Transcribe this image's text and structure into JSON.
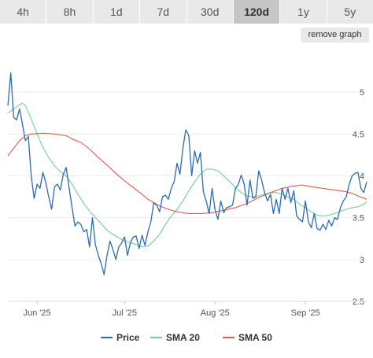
{
  "range_tabs": {
    "items": [
      {
        "label": "4h"
      },
      {
        "label": "8h"
      },
      {
        "label": "1d"
      },
      {
        "label": "7d"
      },
      {
        "label": "30d"
      },
      {
        "label": "120d"
      },
      {
        "label": "1y"
      },
      {
        "label": "5y"
      }
    ],
    "selected": "120d"
  },
  "remove_graph_label": "remove graph",
  "chart_data": {
    "type": "line",
    "title": "",
    "xlabel": "",
    "ylabel": "",
    "ylim": [
      2.5,
      5.5
    ],
    "y_ticks": [
      2.5,
      3,
      3.5,
      4,
      4.5,
      5
    ],
    "x_ticks": [
      {
        "label": "Jun '25",
        "day": 10
      },
      {
        "label": "Jul '25",
        "day": 40
      },
      {
        "label": "Aug '25",
        "day": 71
      },
      {
        "label": "Sep '25",
        "day": 102
      }
    ],
    "x_range_days": [
      0,
      123
    ],
    "grid": true,
    "legend": "bottom",
    "series": [
      {
        "name": "Price",
        "color": "#2b6cb0",
        "points": [
          [
            0,
            4.84
          ],
          [
            1,
            5.23
          ],
          [
            2,
            4.7
          ],
          [
            3,
            4.67
          ],
          [
            4,
            4.8
          ],
          [
            5,
            4.62
          ],
          [
            6,
            4.42
          ],
          [
            7,
            4.47
          ],
          [
            8,
            4.0
          ],
          [
            9,
            3.73
          ],
          [
            10,
            3.9
          ],
          [
            11,
            3.85
          ],
          [
            12,
            4.04
          ],
          [
            13,
            3.92
          ],
          [
            14,
            3.75
          ],
          [
            15,
            3.6
          ],
          [
            16,
            3.87
          ],
          [
            17,
            3.9
          ],
          [
            18,
            3.83
          ],
          [
            19,
            4.02
          ],
          [
            20,
            4.1
          ],
          [
            21,
            3.85
          ],
          [
            22,
            3.62
          ],
          [
            23,
            3.4
          ],
          [
            24,
            3.45
          ],
          [
            25,
            3.42
          ],
          [
            26,
            3.33
          ],
          [
            27,
            3.36
          ],
          [
            28,
            3.15
          ],
          [
            29,
            3.5
          ],
          [
            30,
            3.18
          ],
          [
            31,
            3.05
          ],
          [
            32,
            2.95
          ],
          [
            33,
            2.82
          ],
          [
            34,
            3.05
          ],
          [
            35,
            3.22
          ],
          [
            36,
            3.12
          ],
          [
            37,
            3.0
          ],
          [
            38,
            3.15
          ],
          [
            39,
            3.2
          ],
          [
            40,
            3.27
          ],
          [
            41,
            3.05
          ],
          [
            42,
            3.2
          ],
          [
            43,
            3.27
          ],
          [
            44,
            3.28
          ],
          [
            45,
            3.13
          ],
          [
            46,
            3.29
          ],
          [
            47,
            3.17
          ],
          [
            48,
            3.33
          ],
          [
            49,
            3.45
          ],
          [
            50,
            3.68
          ],
          [
            51,
            3.65
          ],
          [
            52,
            3.57
          ],
          [
            53,
            3.75
          ],
          [
            54,
            3.77
          ],
          [
            55,
            3.72
          ],
          [
            56,
            3.85
          ],
          [
            57,
            3.93
          ],
          [
            58,
            4.15
          ],
          [
            59,
            4.02
          ],
          [
            60,
            4.33
          ],
          [
            61,
            4.55
          ],
          [
            62,
            4.48
          ],
          [
            63,
            4.0
          ],
          [
            64,
            4.3
          ],
          [
            65,
            4.15
          ],
          [
            66,
            4.28
          ],
          [
            67,
            3.81
          ],
          [
            68,
            3.7
          ],
          [
            69,
            3.55
          ],
          [
            70,
            3.85
          ],
          [
            71,
            3.6
          ],
          [
            72,
            3.48
          ],
          [
            73,
            3.7
          ],
          [
            74,
            3.56
          ],
          [
            75,
            3.62
          ],
          [
            76,
            3.63
          ],
          [
            77,
            3.65
          ],
          [
            78,
            3.85
          ],
          [
            79,
            3.9
          ],
          [
            80,
            4.01
          ],
          [
            81,
            3.9
          ],
          [
            82,
            3.65
          ],
          [
            83,
            3.95
          ],
          [
            84,
            3.73
          ],
          [
            85,
            3.75
          ],
          [
            86,
            4.06
          ],
          [
            87,
            3.95
          ],
          [
            88,
            3.8
          ],
          [
            89,
            3.7
          ],
          [
            90,
            3.78
          ],
          [
            91,
            3.55
          ],
          [
            92,
            3.72
          ],
          [
            93,
            3.55
          ],
          [
            94,
            3.85
          ],
          [
            95,
            3.72
          ],
          [
            96,
            3.85
          ],
          [
            97,
            3.68
          ],
          [
            98,
            3.82
          ],
          [
            99,
            3.52
          ],
          [
            100,
            3.48
          ],
          [
            101,
            3.45
          ],
          [
            102,
            3.7
          ],
          [
            103,
            3.45
          ],
          [
            104,
            3.38
          ],
          [
            105,
            3.55
          ],
          [
            106,
            3.37
          ],
          [
            107,
            3.35
          ],
          [
            108,
            3.42
          ],
          [
            109,
            3.36
          ],
          [
            110,
            3.47
          ],
          [
            111,
            3.4
          ],
          [
            112,
            3.5
          ],
          [
            113,
            3.48
          ],
          [
            114,
            3.62
          ],
          [
            115,
            3.7
          ],
          [
            116,
            3.75
          ],
          [
            117,
            3.9
          ],
          [
            118,
            4.0
          ],
          [
            119,
            4.03
          ],
          [
            120,
            4.04
          ],
          [
            121,
            3.85
          ],
          [
            122,
            3.8
          ],
          [
            123,
            3.93
          ]
        ]
      },
      {
        "name": "SMA 20",
        "color": "#6fcf97",
        "points": [
          [
            0,
            4.75
          ],
          [
            2,
            4.8
          ],
          [
            4,
            4.85
          ],
          [
            5,
            4.87
          ],
          [
            6,
            4.84
          ],
          [
            8,
            4.68
          ],
          [
            10,
            4.5
          ],
          [
            12,
            4.34
          ],
          [
            14,
            4.22
          ],
          [
            16,
            4.12
          ],
          [
            18,
            4.05
          ],
          [
            20,
            4.0
          ],
          [
            22,
            3.9
          ],
          [
            24,
            3.78
          ],
          [
            26,
            3.67
          ],
          [
            28,
            3.58
          ],
          [
            30,
            3.5
          ],
          [
            32,
            3.43
          ],
          [
            34,
            3.35
          ],
          [
            36,
            3.3
          ],
          [
            38,
            3.26
          ],
          [
            40,
            3.22
          ],
          [
            42,
            3.2
          ],
          [
            44,
            3.18
          ],
          [
            46,
            3.15
          ],
          [
            48,
            3.16
          ],
          [
            50,
            3.22
          ],
          [
            52,
            3.3
          ],
          [
            54,
            3.42
          ],
          [
            56,
            3.52
          ],
          [
            58,
            3.6
          ],
          [
            60,
            3.7
          ],
          [
            62,
            3.82
          ],
          [
            64,
            3.93
          ],
          [
            66,
            4.02
          ],
          [
            68,
            4.08
          ],
          [
            70,
            4.08
          ],
          [
            72,
            4.06
          ],
          [
            74,
            4.0
          ],
          [
            76,
            3.93
          ],
          [
            78,
            3.86
          ],
          [
            80,
            3.8
          ],
          [
            82,
            3.76
          ],
          [
            84,
            3.75
          ],
          [
            86,
            3.76
          ],
          [
            88,
            3.78
          ],
          [
            90,
            3.8
          ],
          [
            92,
            3.8
          ],
          [
            94,
            3.78
          ],
          [
            96,
            3.75
          ],
          [
            98,
            3.72
          ],
          [
            100,
            3.66
          ],
          [
            102,
            3.62
          ],
          [
            104,
            3.57
          ],
          [
            106,
            3.53
          ],
          [
            108,
            3.52
          ],
          [
            110,
            3.53
          ],
          [
            112,
            3.55
          ],
          [
            114,
            3.58
          ],
          [
            116,
            3.6
          ],
          [
            118,
            3.62
          ],
          [
            120,
            3.63
          ],
          [
            122,
            3.66
          ],
          [
            123,
            3.69
          ]
        ]
      },
      {
        "name": "SMA 50",
        "color": "#e05a4f",
        "points": [
          [
            0,
            4.24
          ],
          [
            2,
            4.33
          ],
          [
            4,
            4.42
          ],
          [
            6,
            4.48
          ],
          [
            8,
            4.5
          ],
          [
            12,
            4.51
          ],
          [
            16,
            4.5
          ],
          [
            20,
            4.48
          ],
          [
            22,
            4.44
          ],
          [
            25,
            4.4
          ],
          [
            28,
            4.32
          ],
          [
            31,
            4.22
          ],
          [
            34,
            4.13
          ],
          [
            37,
            4.03
          ],
          [
            40,
            3.94
          ],
          [
            43,
            3.86
          ],
          [
            46,
            3.78
          ],
          [
            48,
            3.72
          ],
          [
            50,
            3.68
          ],
          [
            52,
            3.64
          ],
          [
            55,
            3.6
          ],
          [
            58,
            3.57
          ],
          [
            62,
            3.55
          ],
          [
            66,
            3.55
          ],
          [
            70,
            3.56
          ],
          [
            74,
            3.59
          ],
          [
            78,
            3.62
          ],
          [
            82,
            3.67
          ],
          [
            86,
            3.74
          ],
          [
            90,
            3.8
          ],
          [
            94,
            3.85
          ],
          [
            98,
            3.88
          ],
          [
            101,
            3.89
          ],
          [
            104,
            3.87
          ],
          [
            108,
            3.85
          ],
          [
            112,
            3.83
          ],
          [
            116,
            3.81
          ],
          [
            118,
            3.79
          ],
          [
            120,
            3.76
          ],
          [
            123,
            3.72
          ]
        ]
      }
    ]
  }
}
